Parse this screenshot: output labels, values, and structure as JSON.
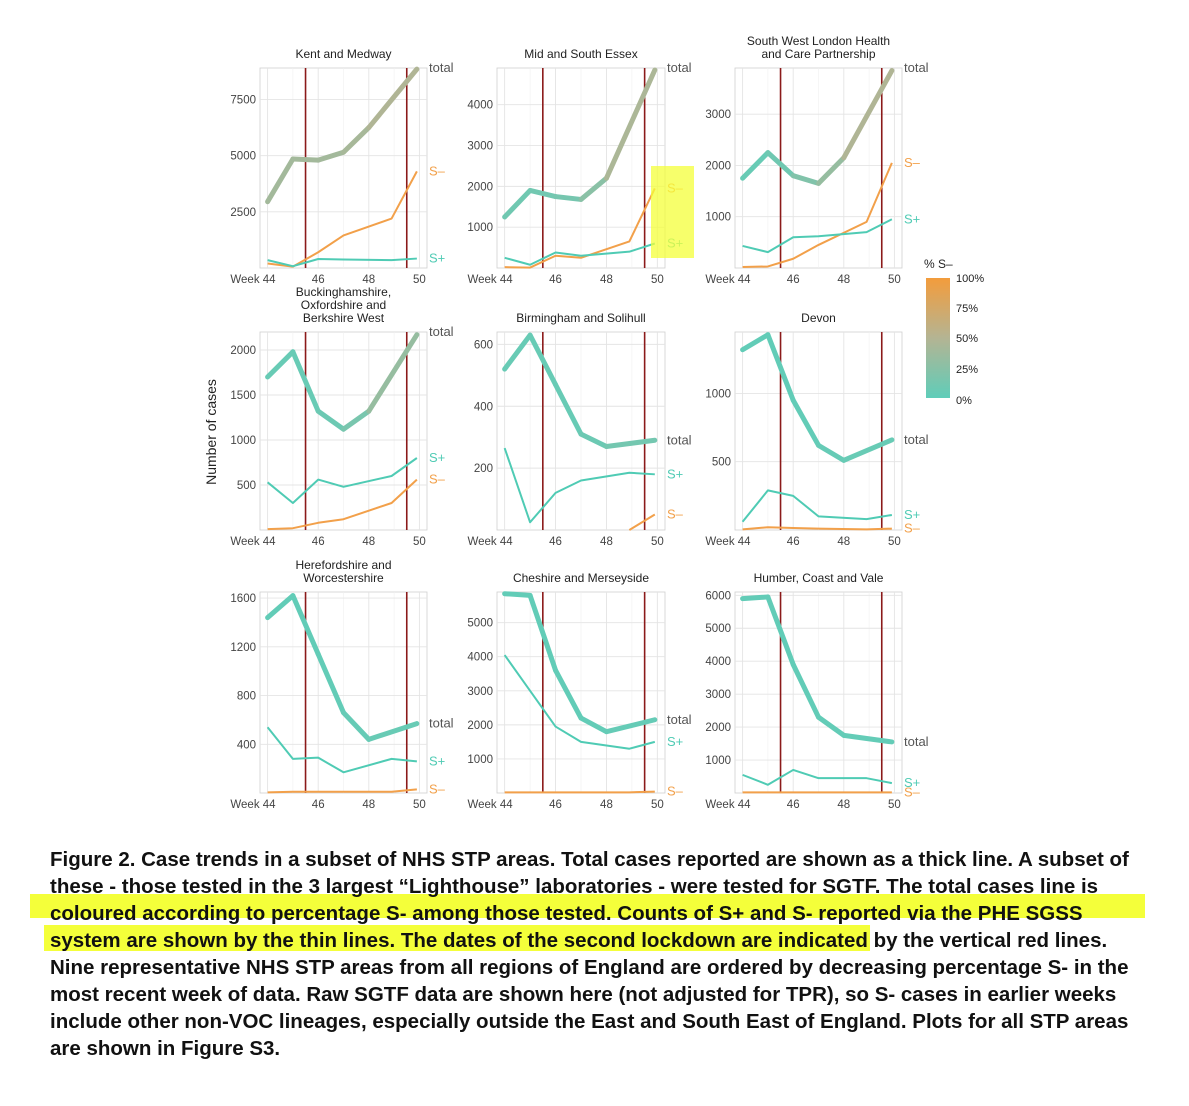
{
  "y_axis_label": "Number of cases",
  "legend": {
    "title": "% S–",
    "ticks": [
      "100%",
      "75%",
      "50%",
      "25%",
      "0%"
    ],
    "colors": {
      "low": "#5fcdb9",
      "mid": "#b4b493",
      "high": "#f39c3c"
    }
  },
  "line_colors": {
    "total_low": "#5fcdb9",
    "total_high": "#f4a040",
    "s_plus": "#4fcbb4",
    "s_minus": "#f2a04a",
    "lockdown": "#8b1a1a"
  },
  "x_tick_labels": [
    "Week 44",
    "46",
    "48",
    "50"
  ],
  "lockdown_weeks": [
    45.5,
    49.5
  ],
  "caption": {
    "p1": "Figure 2. Case trends in a subset of NHS STP areas. Total cases reported are shown as a thick line. A subset of these - those tested in the 3 largest “Lighthouse” laboratories - were tested for ",
    "p2": "SGTF.",
    "p3": " The total cases line is coloured according to percentage S- among those tested",
    "p4": ". Counts of S+ and S- reported via the PHE SGSS system are shown by the thin lines.",
    "p5": " The dates of the second lockdown are indicated by the vertical red lines. Nine representative NHS STP areas from all regions of England are ordered by decreasing percentage S- in the most recent week of data. Raw SGTF data are shown here (not adjusted for TPR), so S- cases in earlier weeks include other non-VOC lineages, especially outside the East and South East of England. Plots for all STP areas are shown in Figure S3."
  },
  "chart_data": [
    {
      "type": "line",
      "title": "Kent and Medway",
      "ylim": [
        0,
        8900
      ],
      "yticks": [
        2500,
        5000,
        7500
      ],
      "x": [
        44,
        45,
        46,
        47,
        48,
        49,
        50
      ],
      "xlim": [
        43.7,
        50.3
      ],
      "series": [
        {
          "name": "total",
          "values": [
            2950,
            4850,
            4800,
            5150,
            6250,
            8850
          ],
          "x": [
            44,
            45,
            46,
            47,
            48,
            49.9
          ],
          "pct_s_minus": [
            0.4,
            0.4,
            0.4,
            0.4,
            0.45,
            0.5
          ]
        },
        {
          "name": "S–",
          "values": [
            200,
            60,
            700,
            1450,
            2200,
            4300
          ],
          "x": [
            44,
            45,
            46,
            47,
            48.9,
            49.9
          ]
        },
        {
          "name": "S+",
          "values": [
            350,
            80,
            400,
            380,
            350,
            420
          ],
          "x": [
            44,
            45,
            46,
            47,
            48.9,
            49.9
          ]
        }
      ]
    },
    {
      "type": "line",
      "title": "Mid and South Essex",
      "ylim": [
        0,
        4900
      ],
      "yticks": [
        1000,
        2000,
        3000,
        4000
      ],
      "x": [
        44,
        45,
        46,
        47,
        48,
        49,
        50
      ],
      "xlim": [
        43.7,
        50.3
      ],
      "series": [
        {
          "name": "total",
          "values": [
            1250,
            1900,
            1750,
            1680,
            2200,
            4850
          ],
          "x": [
            44,
            45,
            46,
            47,
            48,
            49.9
          ],
          "pct_s_minus": [
            0.1,
            0.1,
            0.12,
            0.15,
            0.35,
            0.55
          ]
        },
        {
          "name": "S–",
          "values": [
            20,
            10,
            300,
            250,
            650,
            1950
          ],
          "x": [
            44,
            45,
            46,
            47,
            48.9,
            49.9
          ]
        },
        {
          "name": "S+",
          "values": [
            250,
            80,
            380,
            300,
            400,
            600
          ],
          "x": [
            44,
            45,
            46,
            47,
            48.9,
            49.9
          ]
        }
      ]
    },
    {
      "type": "line",
      "title": "South West London Health and Care Partnership",
      "ylim": [
        0,
        3900
      ],
      "yticks": [
        1000,
        2000,
        3000
      ],
      "x": [
        44,
        45,
        46,
        47,
        48,
        49,
        50
      ],
      "xlim": [
        43.7,
        50.3
      ],
      "series": [
        {
          "name": "total",
          "values": [
            1750,
            2250,
            1800,
            1650,
            2150,
            3850
          ],
          "x": [
            44,
            45,
            46,
            47,
            48,
            49.9
          ],
          "pct_s_minus": [
            0.05,
            0.05,
            0.15,
            0.25,
            0.4,
            0.55
          ]
        },
        {
          "name": "S–",
          "values": [
            20,
            30,
            180,
            450,
            900,
            2050
          ],
          "x": [
            44,
            45,
            46,
            47,
            48.9,
            49.9
          ]
        },
        {
          "name": "S+",
          "values": [
            430,
            310,
            600,
            620,
            700,
            950
          ],
          "x": [
            44,
            45,
            46,
            47,
            48.9,
            49.9
          ]
        }
      ]
    },
    {
      "type": "line",
      "title": "Buckinghamshire, Oxfordshire and Berkshire West",
      "ylim": [
        0,
        2200
      ],
      "yticks": [
        500,
        1000,
        1500,
        2000
      ],
      "x": [
        44,
        45,
        46,
        47,
        48,
        49,
        50
      ],
      "xlim": [
        43.7,
        50.3
      ],
      "series": [
        {
          "name": "total",
          "values": [
            1700,
            1980,
            1320,
            1120,
            1320,
            2170
          ],
          "x": [
            44,
            45,
            46,
            47,
            48,
            49.9
          ],
          "pct_s_minus": [
            0.05,
            0.05,
            0.05,
            0.1,
            0.2,
            0.45
          ]
        },
        {
          "name": "S+",
          "values": [
            530,
            300,
            560,
            480,
            600,
            800
          ],
          "x": [
            44,
            45,
            46,
            47,
            48.9,
            49.9
          ]
        },
        {
          "name": "S–",
          "values": [
            10,
            20,
            80,
            120,
            300,
            560
          ],
          "x": [
            44,
            45,
            46,
            47,
            48.9,
            49.9
          ]
        }
      ]
    },
    {
      "type": "line",
      "title": "Birmingham and Solihull",
      "ylim": [
        0,
        640
      ],
      "yticks": [
        200,
        400,
        600
      ],
      "x": [
        44,
        45,
        46,
        47,
        48,
        49,
        50
      ],
      "xlim": [
        43.7,
        50.3
      ],
      "series": [
        {
          "name": "total",
          "values": [
            520,
            630,
            470,
            310,
            270,
            290
          ],
          "x": [
            44,
            45,
            46,
            47,
            48,
            49.9
          ],
          "pct_s_minus": [
            0.05,
            0.05,
            0.05,
            0.05,
            0.1,
            0.15
          ]
        },
        {
          "name": "S+",
          "values": [
            265,
            25,
            120,
            160,
            185,
            180
          ],
          "x": [
            44,
            45,
            46,
            47,
            48.9,
            49.9
          ]
        },
        {
          "name": "S–",
          "values": [
            0,
            50
          ],
          "x": [
            48.9,
            49.9
          ]
        }
      ]
    },
    {
      "type": "line",
      "title": "Devon",
      "ylim": [
        0,
        1450
      ],
      "yticks": [
        500,
        1000
      ],
      "x": [
        44,
        45,
        46,
        47,
        48,
        49,
        50
      ],
      "xlim": [
        43.7,
        50.3
      ],
      "series": [
        {
          "name": "total",
          "values": [
            1320,
            1430,
            950,
            620,
            510,
            660
          ],
          "x": [
            44,
            45,
            46,
            47,
            48,
            49.9
          ],
          "pct_s_minus": [
            0.02,
            0.02,
            0.02,
            0.03,
            0.05,
            0.05
          ]
        },
        {
          "name": "S+",
          "values": [
            60,
            290,
            250,
            100,
            80,
            110
          ],
          "x": [
            44,
            45,
            46,
            47,
            48.9,
            49.9
          ]
        },
        {
          "name": "S–",
          "values": [
            5,
            20,
            15,
            10,
            5,
            10
          ],
          "x": [
            44,
            45,
            46,
            47,
            48.9,
            49.9
          ]
        }
      ]
    },
    {
      "type": "line",
      "title": "Herefordshire and Worcestershire",
      "ylim": [
        0,
        1650
      ],
      "yticks": [
        400,
        800,
        1200,
        1600
      ],
      "x": [
        44,
        45,
        46,
        47,
        48,
        49,
        50
      ],
      "xlim": [
        43.7,
        50.3
      ],
      "series": [
        {
          "name": "total",
          "values": [
            1440,
            1620,
            1140,
            660,
            440,
            570
          ],
          "x": [
            44,
            45,
            46,
            47,
            48,
            49.9
          ],
          "pct_s_minus": [
            0.02,
            0.02,
            0.02,
            0.03,
            0.05,
            0.05
          ]
        },
        {
          "name": "S+",
          "values": [
            540,
            280,
            290,
            170,
            280,
            260
          ],
          "x": [
            44,
            45,
            46,
            47,
            48.9,
            49.9
          ]
        },
        {
          "name": "S–",
          "values": [
            5,
            10,
            10,
            10,
            10,
            30
          ],
          "x": [
            44,
            45,
            46,
            47,
            48.9,
            49.9
          ]
        }
      ]
    },
    {
      "type": "line",
      "title": "Cheshire and Merseyside",
      "ylim": [
        0,
        5900
      ],
      "yticks": [
        1000,
        2000,
        3000,
        4000,
        5000
      ],
      "x": [
        44,
        45,
        46,
        47,
        48,
        49,
        50
      ],
      "xlim": [
        43.7,
        50.3
      ],
      "series": [
        {
          "name": "total",
          "values": [
            5850,
            5800,
            3600,
            2200,
            1800,
            2150
          ],
          "x": [
            44,
            45,
            46,
            47,
            48,
            49.9
          ],
          "pct_s_minus": [
            0.02,
            0.02,
            0.02,
            0.02,
            0.03,
            0.04
          ]
        },
        {
          "name": "S+",
          "values": [
            4050,
            3000,
            1950,
            1500,
            1300,
            1500
          ],
          "x": [
            44,
            45,
            46,
            47,
            48.9,
            49.9
          ]
        },
        {
          "name": "S–",
          "values": [
            20,
            20,
            20,
            20,
            20,
            40
          ],
          "x": [
            44,
            45,
            46,
            47,
            48.9,
            49.9
          ]
        }
      ]
    },
    {
      "type": "line",
      "title": "Humber, Coast and Vale",
      "ylim": [
        0,
        6100
      ],
      "yticks": [
        1000,
        2000,
        3000,
        4000,
        5000,
        6000
      ],
      "x": [
        44,
        45,
        46,
        47,
        48,
        49,
        50
      ],
      "xlim": [
        43.7,
        50.3
      ],
      "series": [
        {
          "name": "total",
          "values": [
            5900,
            5950,
            3900,
            2300,
            1750,
            1550
          ],
          "x": [
            44,
            45,
            46,
            47,
            48,
            49.9
          ],
          "pct_s_minus": [
            0.02,
            0.02,
            0.02,
            0.02,
            0.03,
            0.03
          ]
        },
        {
          "name": "S+",
          "values": [
            550,
            250,
            700,
            450,
            450,
            300
          ],
          "x": [
            44,
            45,
            46,
            47,
            48.9,
            49.9
          ]
        },
        {
          "name": "S–",
          "values": [
            20,
            20,
            20,
            20,
            20,
            20
          ],
          "x": [
            44,
            45,
            46,
            47,
            48.9,
            49.9
          ]
        }
      ]
    }
  ]
}
